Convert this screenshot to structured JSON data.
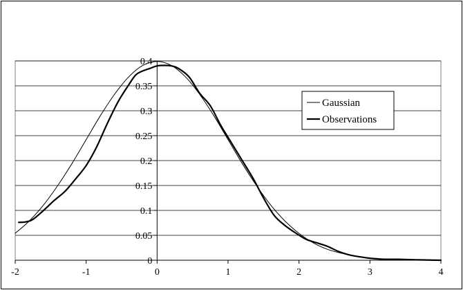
{
  "chart_data": {
    "type": "line",
    "title": "",
    "xlabel": "",
    "ylabel": "",
    "xlim": [
      -2,
      4
    ],
    "ylim": [
      0,
      0.4
    ],
    "x_ticks": [
      -2,
      -1,
      0,
      1,
      2,
      3,
      4
    ],
    "y_ticks": [
      0,
      0.05,
      0.1,
      0.15,
      0.2,
      0.25,
      0.3,
      0.35,
      0.4
    ],
    "x_tick_labels": [
      "-2",
      "-1",
      "0",
      "1",
      "2",
      "3",
      "4"
    ],
    "y_tick_labels": [
      "0",
      "0.05",
      "0.1",
      "0.15",
      "0.2",
      "0.25",
      "0.3",
      "0.35",
      "0.4"
    ],
    "grid": "horizontal",
    "legend_position": "right",
    "series": [
      {
        "name": "Gaussian",
        "stroke": "thin",
        "color": "#000000",
        "points": [
          [
            -2.0,
            0.054
          ],
          [
            -1.8,
            0.079
          ],
          [
            -1.6,
            0.111
          ],
          [
            -1.4,
            0.15
          ],
          [
            -1.2,
            0.194
          ],
          [
            -1.0,
            0.242
          ],
          [
            -0.8,
            0.29
          ],
          [
            -0.6,
            0.333
          ],
          [
            -0.4,
            0.368
          ],
          [
            -0.2,
            0.391
          ],
          [
            0.0,
            0.399
          ],
          [
            0.2,
            0.391
          ],
          [
            0.4,
            0.368
          ],
          [
            0.6,
            0.333
          ],
          [
            0.8,
            0.29
          ],
          [
            1.0,
            0.242
          ],
          [
            1.2,
            0.194
          ],
          [
            1.4,
            0.15
          ],
          [
            1.6,
            0.111
          ],
          [
            1.8,
            0.079
          ],
          [
            2.0,
            0.054
          ],
          [
            2.2,
            0.035
          ],
          [
            2.4,
            0.022
          ],
          [
            2.6,
            0.014
          ],
          [
            2.8,
            0.008
          ],
          [
            3.0,
            0.004
          ],
          [
            3.2,
            0.002
          ],
          [
            3.4,
            0.001
          ],
          [
            3.6,
            0.001
          ],
          [
            3.8,
            0.0
          ],
          [
            4.0,
            0.0
          ]
        ]
      },
      {
        "name": "Observations",
        "stroke": "thick",
        "color": "#000000",
        "points": [
          [
            -1.95,
            0.076
          ],
          [
            -1.85,
            0.077
          ],
          [
            -1.75,
            0.082
          ],
          [
            -1.6,
            0.1
          ],
          [
            -1.45,
            0.12
          ],
          [
            -1.3,
            0.138
          ],
          [
            -1.15,
            0.163
          ],
          [
            -1.0,
            0.19
          ],
          [
            -0.85,
            0.228
          ],
          [
            -0.7,
            0.275
          ],
          [
            -0.55,
            0.318
          ],
          [
            -0.4,
            0.352
          ],
          [
            -0.3,
            0.372
          ],
          [
            -0.2,
            0.38
          ],
          [
            -0.1,
            0.385
          ],
          [
            0.0,
            0.39
          ],
          [
            0.1,
            0.391
          ],
          [
            0.2,
            0.39
          ],
          [
            0.3,
            0.385
          ],
          [
            0.45,
            0.368
          ],
          [
            0.6,
            0.335
          ],
          [
            0.75,
            0.31
          ],
          [
            0.9,
            0.27
          ],
          [
            1.05,
            0.235
          ],
          [
            1.2,
            0.2
          ],
          [
            1.35,
            0.165
          ],
          [
            1.5,
            0.125
          ],
          [
            1.65,
            0.09
          ],
          [
            1.8,
            0.07
          ],
          [
            1.95,
            0.055
          ],
          [
            2.1,
            0.042
          ],
          [
            2.25,
            0.035
          ],
          [
            2.4,
            0.028
          ],
          [
            2.55,
            0.018
          ],
          [
            2.7,
            0.011
          ],
          [
            2.85,
            0.007
          ],
          [
            3.0,
            0.004
          ],
          [
            3.2,
            0.002
          ],
          [
            3.4,
            0.002
          ],
          [
            3.6,
            0.001
          ],
          [
            4.0,
            0.0
          ]
        ]
      }
    ]
  }
}
